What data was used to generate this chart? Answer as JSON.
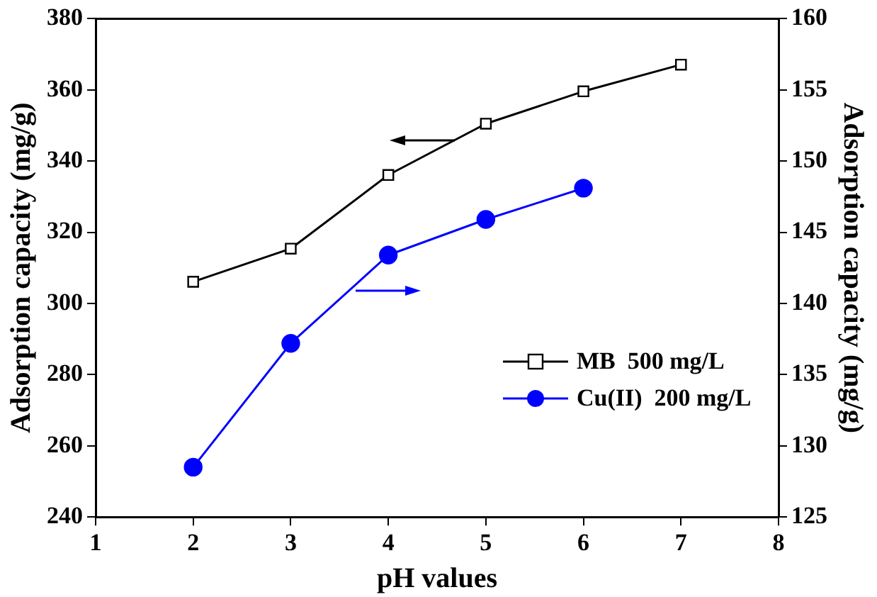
{
  "chart_data": {
    "type": "line",
    "xlabel": "pH values",
    "ylabel": "Adsorption capacity (mg/g)",
    "y2label": "Adsorption capacity (mg/g)",
    "x": [
      2,
      3,
      4,
      5,
      6,
      7
    ],
    "series": [
      {
        "name": "MB  500 mg/L",
        "color": "#000000",
        "marker": "square",
        "values": [
          306.1,
          315.4,
          336.1,
          350.5,
          359.6,
          367.1
        ]
      },
      {
        "name": "Cu(II)  200 mg/L",
        "color": "#0000ff",
        "marker": "circle",
        "axis": "y2",
        "values": [
          128.5,
          137.2,
          143.4,
          145.9,
          148.1,
          null
        ]
      }
    ],
    "xlim": [
      1,
      8
    ],
    "xticks": [
      1,
      2,
      3,
      4,
      5,
      6,
      7,
      8
    ],
    "ylim": [
      240,
      380
    ],
    "yticks": [
      240,
      260,
      280,
      300,
      320,
      340,
      360,
      380
    ],
    "y2lim": [
      125,
      160
    ],
    "y2ticks": [
      125,
      130,
      135,
      140,
      145,
      150,
      155,
      160
    ],
    "grid": false,
    "legend": "bottom right",
    "line_style": "solid"
  }
}
